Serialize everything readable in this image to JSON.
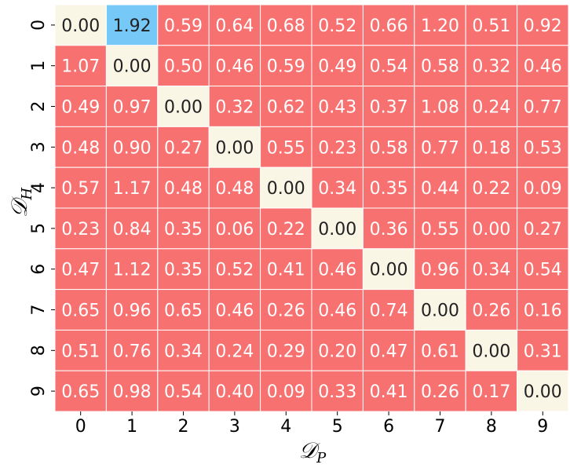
{
  "chart_data": {
    "type": "heatmap",
    "xlabel": "𝒟P",
    "ylabel": "𝒟H",
    "x_categories": [
      "0",
      "1",
      "2",
      "3",
      "4",
      "5",
      "6",
      "7",
      "8",
      "9"
    ],
    "y_categories": [
      "0",
      "1",
      "2",
      "3",
      "4",
      "5",
      "6",
      "7",
      "8",
      "9"
    ],
    "values": [
      [
        0.0,
        1.92,
        0.59,
        0.64,
        0.68,
        0.52,
        0.66,
        1.2,
        0.51,
        0.92
      ],
      [
        1.07,
        0.0,
        0.5,
        0.46,
        0.59,
        0.49,
        0.54,
        0.58,
        0.32,
        0.46
      ],
      [
        0.49,
        0.97,
        0.0,
        0.32,
        0.62,
        0.43,
        0.37,
        1.08,
        0.24,
        0.77
      ],
      [
        0.48,
        0.9,
        0.27,
        0.0,
        0.55,
        0.23,
        0.58,
        0.77,
        0.18,
        0.53
      ],
      [
        0.57,
        1.17,
        0.48,
        0.48,
        0.0,
        0.34,
        0.35,
        0.44,
        0.22,
        0.09
      ],
      [
        0.23,
        0.84,
        0.35,
        0.06,
        0.22,
        0.0,
        0.36,
        0.55,
        0.0,
        0.27
      ],
      [
        0.47,
        1.12,
        0.35,
        0.52,
        0.41,
        0.46,
        0.0,
        0.96,
        0.34,
        0.54
      ],
      [
        0.65,
        0.96,
        0.65,
        0.46,
        0.26,
        0.46,
        0.74,
        0.0,
        0.26,
        0.16
      ],
      [
        0.51,
        0.76,
        0.34,
        0.24,
        0.29,
        0.2,
        0.47,
        0.61,
        0.0,
        0.31
      ],
      [
        0.65,
        0.98,
        0.54,
        0.4,
        0.09,
        0.33,
        0.41,
        0.26,
        0.17,
        0.0
      ]
    ],
    "colors": {
      "diagonal": "#faf6e6",
      "off_diagonal": "#f87171",
      "max": "#76c8f7",
      "gridline": "#ffffff",
      "text_light": "#ffffff",
      "text_dark": "#222222"
    }
  }
}
